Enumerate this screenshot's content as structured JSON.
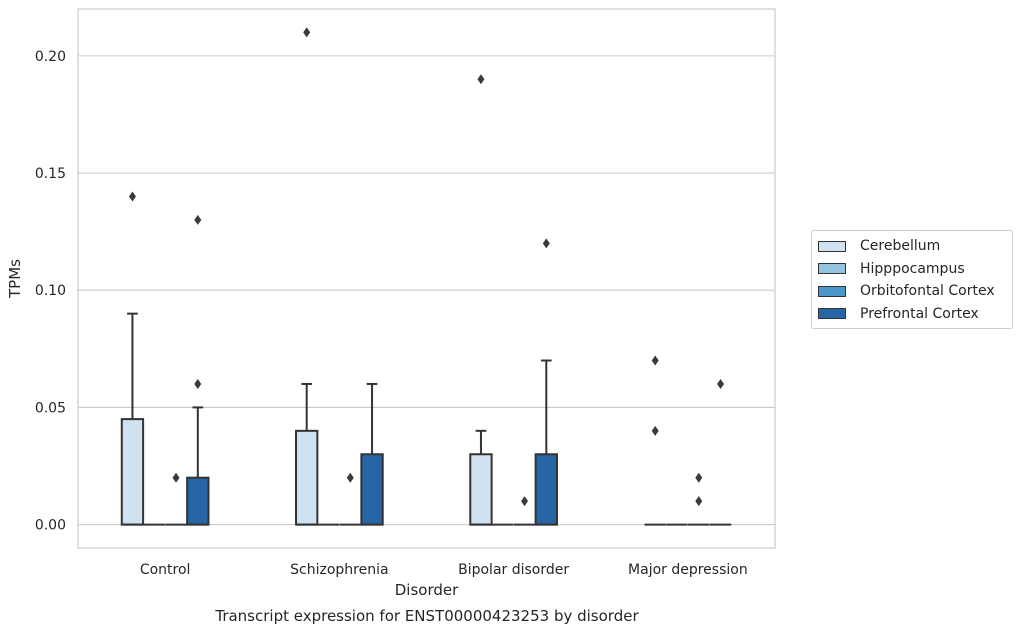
{
  "chart_data": {
    "type": "box",
    "title": "",
    "xlabel": "Disorder",
    "ylabel": "TPMs",
    "ylim": [
      -0.01,
      0.22
    ],
    "yticks": [
      0.0,
      0.05,
      0.1,
      0.15,
      0.2
    ],
    "ytick_labels": [
      "0.00",
      "0.05",
      "0.10",
      "0.15",
      "0.20"
    ],
    "grid": "horizontal",
    "legend_position": "right",
    "categories": [
      "Control",
      "Schizophrenia",
      "Bipolar disorder",
      "Major depression"
    ],
    "series": [
      {
        "name": "Cerebellum",
        "color": "#d0e1f2",
        "boxes": [
          {
            "q1": 0.0,
            "median": 0.0,
            "q3": 0.045,
            "whisker_low": 0.0,
            "whisker_high": 0.09,
            "outliers": [
              0.14
            ]
          },
          {
            "q1": 0.0,
            "median": 0.0,
            "q3": 0.04,
            "whisker_low": 0.0,
            "whisker_high": 0.06,
            "outliers": [
              0.21
            ]
          },
          {
            "q1": 0.0,
            "median": 0.0,
            "q3": 0.03,
            "whisker_low": 0.0,
            "whisker_high": 0.04,
            "outliers": [
              0.19
            ]
          },
          {
            "q1": 0.0,
            "median": 0.0,
            "q3": 0.0,
            "whisker_low": 0.0,
            "whisker_high": 0.0,
            "outliers": [
              0.07,
              0.04
            ]
          }
        ]
      },
      {
        "name": "Hipppocampus",
        "color": "#94c4df",
        "boxes": [
          {
            "q1": 0.0,
            "median": 0.0,
            "q3": 0.0,
            "whisker_low": 0.0,
            "whisker_high": 0.0,
            "outliers": []
          },
          {
            "q1": 0.0,
            "median": 0.0,
            "q3": 0.0,
            "whisker_low": 0.0,
            "whisker_high": 0.0,
            "outliers": []
          },
          {
            "q1": 0.0,
            "median": 0.0,
            "q3": 0.0,
            "whisker_low": 0.0,
            "whisker_high": 0.0,
            "outliers": []
          },
          {
            "q1": 0.0,
            "median": 0.0,
            "q3": 0.0,
            "whisker_low": 0.0,
            "whisker_high": 0.0,
            "outliers": []
          }
        ]
      },
      {
        "name": "Orbitofontal Cortex",
        "color": "#4a98c9",
        "boxes": [
          {
            "q1": 0.0,
            "median": 0.0,
            "q3": 0.0,
            "whisker_low": 0.0,
            "whisker_high": 0.0,
            "outliers": [
              0.02
            ]
          },
          {
            "q1": 0.0,
            "median": 0.0,
            "q3": 0.0,
            "whisker_low": 0.0,
            "whisker_high": 0.0,
            "outliers": [
              0.02
            ]
          },
          {
            "q1": 0.0,
            "median": 0.0,
            "q3": 0.0,
            "whisker_low": 0.0,
            "whisker_high": 0.0,
            "outliers": [
              0.01
            ]
          },
          {
            "q1": 0.0,
            "median": 0.0,
            "q3": 0.0,
            "whisker_low": 0.0,
            "whisker_high": 0.0,
            "outliers": [
              0.02,
              0.01
            ]
          }
        ]
      },
      {
        "name": "Prefrontal Cortex",
        "color": "#2666a6",
        "boxes": [
          {
            "q1": 0.0,
            "median": 0.0,
            "q3": 0.02,
            "whisker_low": 0.0,
            "whisker_high": 0.05,
            "outliers": [
              0.13,
              0.06
            ]
          },
          {
            "q1": 0.0,
            "median": 0.0,
            "q3": 0.03,
            "whisker_low": 0.0,
            "whisker_high": 0.06,
            "outliers": []
          },
          {
            "q1": 0.0,
            "median": 0.0,
            "q3": 0.03,
            "whisker_low": 0.0,
            "whisker_high": 0.07,
            "outliers": [
              0.12
            ]
          },
          {
            "q1": 0.0,
            "median": 0.0,
            "q3": 0.0,
            "whisker_low": 0.0,
            "whisker_high": 0.0,
            "outliers": [
              0.06
            ]
          }
        ]
      }
    ],
    "caption": "Transcript expression for ENST00000423253 by disorder"
  }
}
